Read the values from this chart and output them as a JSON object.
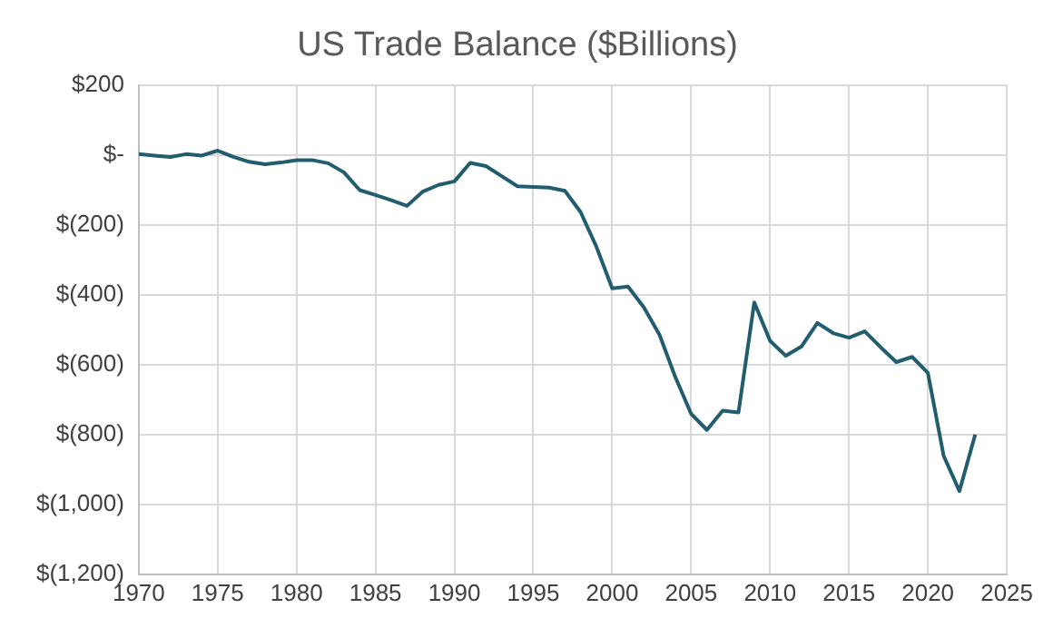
{
  "chart_data": {
    "type": "line",
    "title": "US Trade Balance ($Billions)",
    "x": [
      1970,
      1971,
      1972,
      1973,
      1974,
      1975,
      1976,
      1977,
      1978,
      1979,
      1980,
      1981,
      1982,
      1983,
      1984,
      1985,
      1986,
      1987,
      1988,
      1989,
      1990,
      1991,
      1992,
      1993,
      1994,
      1995,
      1996,
      1997,
      1998,
      1999,
      2000,
      2001,
      2002,
      2003,
      2004,
      2005,
      2006,
      2007,
      2008,
      2009,
      2010,
      2011,
      2012,
      2013,
      2014,
      2015,
      2016,
      2017,
      2018,
      2019,
      2020,
      2021,
      2022,
      2023
    ],
    "series": [
      {
        "color": "#215d6e",
        "values": [
          2,
          -2,
          -6,
          2,
          -2,
          12,
          -6,
          -20,
          -27,
          -22,
          -15,
          -15,
          -24,
          -50,
          -101,
          -115,
          -130,
          -146,
          -105,
          -86,
          -76,
          -23,
          -32,
          -61,
          -90,
          -92,
          -94,
          -103,
          -164,
          -263,
          -382,
          -377,
          -436,
          -515,
          -636,
          -741,
          -787,
          -732,
          -737,
          -422,
          -532,
          -575,
          -548,
          -481,
          -510,
          -523,
          -505,
          -550,
          -593,
          -578,
          -624,
          -861,
          -962,
          -800
        ]
      }
    ],
    "xlim": [
      1970,
      2025
    ],
    "xticks": [
      1970,
      1975,
      1980,
      1985,
      1990,
      1995,
      2000,
      2005,
      2010,
      2015,
      2020,
      2025
    ],
    "ylim": [
      -1200,
      200
    ],
    "yticks": [
      {
        "value": -1200,
        "label": "$(1,200)"
      },
      {
        "value": -1000,
        "label": "$(1,000)"
      },
      {
        "value": -800,
        "label": "$(800)"
      },
      {
        "value": -600,
        "label": "$(600)"
      },
      {
        "value": -400,
        "label": "$(400)"
      },
      {
        "value": -200,
        "label": "$(200)"
      },
      {
        "value": 0,
        "label": "$-"
      },
      {
        "value": 200,
        "label": "$200"
      }
    ],
    "grid": true,
    "legend": false,
    "marker": "none",
    "line_style": "solid"
  }
}
